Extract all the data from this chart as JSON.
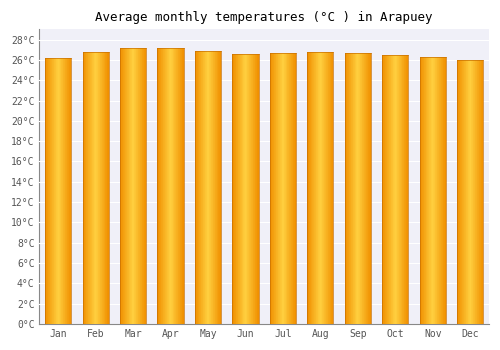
{
  "title": "Average monthly temperatures (°C ) in Arapuey",
  "months": [
    "Jan",
    "Feb",
    "Mar",
    "Apr",
    "May",
    "Jun",
    "Jul",
    "Aug",
    "Sep",
    "Oct",
    "Nov",
    "Dec"
  ],
  "values": [
    26.2,
    26.8,
    27.2,
    27.2,
    26.9,
    26.6,
    26.7,
    26.8,
    26.7,
    26.5,
    26.3,
    26.0
  ],
  "bar_color_center": "#FFD040",
  "bar_color_edge": "#F09000",
  "background_color": "#FFFFFF",
  "plot_bg_color": "#F0F0F8",
  "grid_color": "#FFFFFF",
  "ylabel_ticks": [
    0,
    2,
    4,
    6,
    8,
    10,
    12,
    14,
    16,
    18,
    20,
    22,
    24,
    26,
    28
  ],
  "ylim": [
    0,
    29
  ],
  "title_fontsize": 9,
  "tick_fontsize": 7,
  "font_family": "monospace"
}
